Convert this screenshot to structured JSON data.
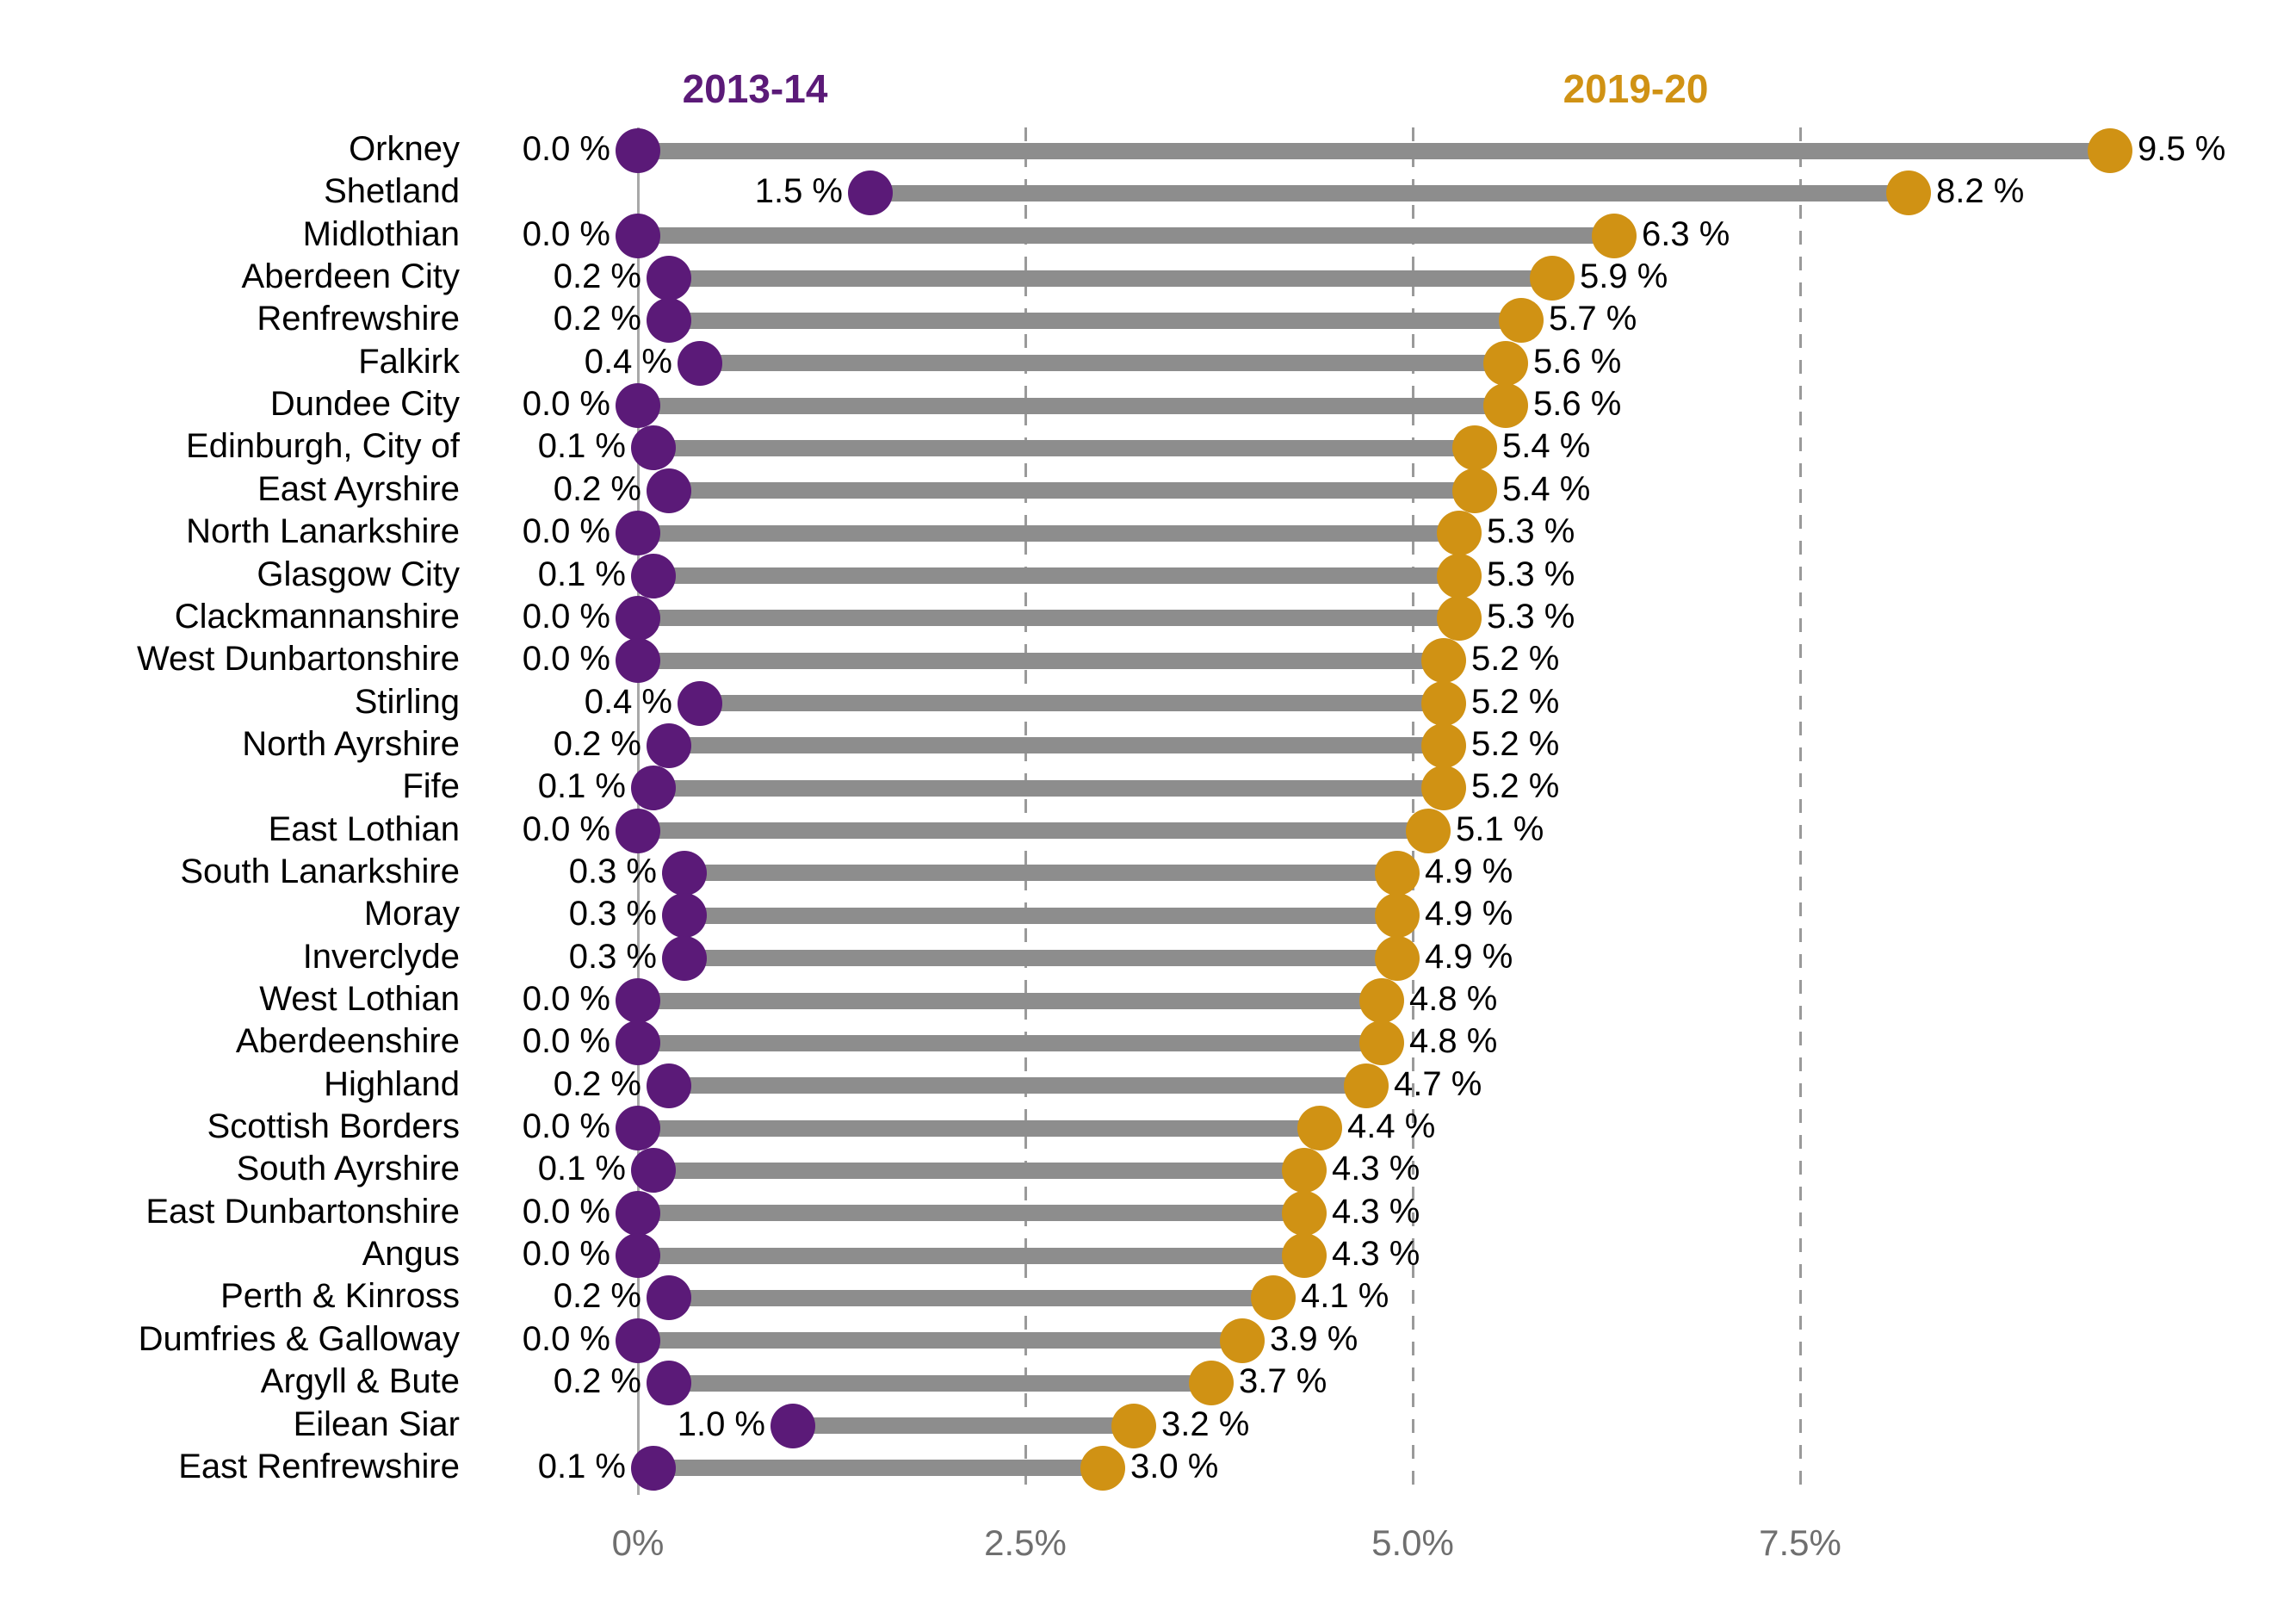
{
  "header": {
    "series1_title": "2013-14",
    "series2_title": "2019-20"
  },
  "colors": {
    "series1": "#5B1A78",
    "series2": "#D09214",
    "connector": "#8d8d8d",
    "axis": "#a8a8a8",
    "gridline": "#9a9a9a",
    "tick_text": "#6f6f6f",
    "label_text": "#000000"
  },
  "chart_data": {
    "type": "dumbbell",
    "title": "",
    "xlabel": "",
    "ylabel": "",
    "legend_position": "top",
    "grid": "vertical-dashed",
    "x_axis": {
      "tick_labels": [
        "0%",
        "2.5%",
        "5.0%",
        "7.5%"
      ],
      "tick_values": [
        0,
        2.5,
        5.0,
        7.5
      ],
      "range_max_pct": 9.5
    },
    "series": [
      {
        "name": "2013-14",
        "color": "#5B1A78"
      },
      {
        "name": "2019-20",
        "color": "#D09214"
      }
    ],
    "value_suffix": " %",
    "rows": [
      {
        "area": "Orkney",
        "v2013": 0.0,
        "v2013_label": "0.0 %",
        "v2019": 9.5,
        "v2019_label": "9.5 %"
      },
      {
        "area": "Shetland",
        "v2013": 1.5,
        "v2013_label": "1.5 %",
        "v2019": 8.2,
        "v2019_label": "8.2 %"
      },
      {
        "area": "Midlothian",
        "v2013": 0.0,
        "v2013_label": "0.0 %",
        "v2019": 6.3,
        "v2019_label": "6.3 %"
      },
      {
        "area": "Aberdeen City",
        "v2013": 0.2,
        "v2013_label": "0.2 %",
        "v2019": 5.9,
        "v2019_label": "5.9 %"
      },
      {
        "area": "Renfrewshire",
        "v2013": 0.2,
        "v2013_label": "0.2 %",
        "v2019": 5.7,
        "v2019_label": "5.7 %"
      },
      {
        "area": "Falkirk",
        "v2013": 0.4,
        "v2013_label": "0.4 %",
        "v2019": 5.6,
        "v2019_label": "5.6 %"
      },
      {
        "area": "Dundee City",
        "v2013": 0.0,
        "v2013_label": "0.0 %",
        "v2019": 5.6,
        "v2019_label": "5.6 %"
      },
      {
        "area": "Edinburgh, City of",
        "v2013": 0.1,
        "v2013_label": "0.1 %",
        "v2019": 5.4,
        "v2019_label": "5.4 %"
      },
      {
        "area": "East Ayrshire",
        "v2013": 0.2,
        "v2013_label": "0.2 %",
        "v2019": 5.4,
        "v2019_label": "5.4 %"
      },
      {
        "area": "North Lanarkshire",
        "v2013": 0.0,
        "v2013_label": "0.0 %",
        "v2019": 5.3,
        "v2019_label": "5.3 %"
      },
      {
        "area": "Glasgow City",
        "v2013": 0.1,
        "v2013_label": "0.1 %",
        "v2019": 5.3,
        "v2019_label": "5.3 %"
      },
      {
        "area": "Clackmannanshire",
        "v2013": 0.0,
        "v2013_label": "0.0 %",
        "v2019": 5.3,
        "v2019_label": "5.3 %"
      },
      {
        "area": "West Dunbartonshire",
        "v2013": 0.0,
        "v2013_label": "0.0 %",
        "v2019": 5.2,
        "v2019_label": "5.2 %"
      },
      {
        "area": "Stirling",
        "v2013": 0.4,
        "v2013_label": "0.4 %",
        "v2019": 5.2,
        "v2019_label": "5.2 %"
      },
      {
        "area": "North Ayrshire",
        "v2013": 0.2,
        "v2013_label": "0.2 %",
        "v2019": 5.2,
        "v2019_label": "5.2 %"
      },
      {
        "area": "Fife",
        "v2013": 0.1,
        "v2013_label": "0.1 %",
        "v2019": 5.2,
        "v2019_label": "5.2 %"
      },
      {
        "area": "East Lothian",
        "v2013": 0.0,
        "v2013_label": "0.0 %",
        "v2019": 5.1,
        "v2019_label": "5.1 %"
      },
      {
        "area": "South Lanarkshire",
        "v2013": 0.3,
        "v2013_label": "0.3 %",
        "v2019": 4.9,
        "v2019_label": "4.9 %"
      },
      {
        "area": "Moray",
        "v2013": 0.3,
        "v2013_label": "0.3 %",
        "v2019": 4.9,
        "v2019_label": "4.9 %"
      },
      {
        "area": "Inverclyde",
        "v2013": 0.3,
        "v2013_label": "0.3 %",
        "v2019": 4.9,
        "v2019_label": "4.9 %"
      },
      {
        "area": "West Lothian",
        "v2013": 0.0,
        "v2013_label": "0.0 %",
        "v2019": 4.8,
        "v2019_label": "4.8 %"
      },
      {
        "area": "Aberdeenshire",
        "v2013": 0.0,
        "v2013_label": "0.0 %",
        "v2019": 4.8,
        "v2019_label": "4.8 %"
      },
      {
        "area": "Highland",
        "v2013": 0.2,
        "v2013_label": "0.2 %",
        "v2019": 4.7,
        "v2019_label": "4.7 %"
      },
      {
        "area": "Scottish Borders",
        "v2013": 0.0,
        "v2013_label": "0.0 %",
        "v2019": 4.4,
        "v2019_label": "4.4 %"
      },
      {
        "area": "South Ayrshire",
        "v2013": 0.1,
        "v2013_label": "0.1 %",
        "v2019": 4.3,
        "v2019_label": "4.3 %"
      },
      {
        "area": "East Dunbartonshire",
        "v2013": 0.0,
        "v2013_label": "0.0 %",
        "v2019": 4.3,
        "v2019_label": "4.3 %"
      },
      {
        "area": "Angus",
        "v2013": 0.0,
        "v2013_label": "0.0 %",
        "v2019": 4.3,
        "v2019_label": "4.3 %"
      },
      {
        "area": "Perth & Kinross",
        "v2013": 0.2,
        "v2013_label": "0.2 %",
        "v2019": 4.1,
        "v2019_label": "4.1 %"
      },
      {
        "area": "Dumfries & Galloway",
        "v2013": 0.0,
        "v2013_label": "0.0 %",
        "v2019": 3.9,
        "v2019_label": "3.9 %"
      },
      {
        "area": "Argyll & Bute",
        "v2013": 0.2,
        "v2013_label": "0.2 %",
        "v2019": 3.7,
        "v2019_label": "3.7 %"
      },
      {
        "area": "Eilean Siar",
        "v2013": 1.0,
        "v2013_label": "1.0 %",
        "v2019": 3.2,
        "v2019_label": "3.2 %"
      },
      {
        "area": "East Renfrewshire",
        "v2013": 0.1,
        "v2013_label": "0.1 %",
        "v2019": 3.0,
        "v2019_label": "3.0 %"
      }
    ]
  }
}
